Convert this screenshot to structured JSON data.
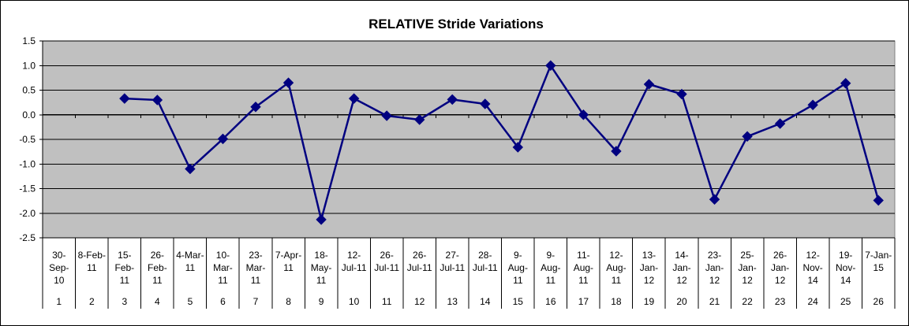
{
  "chart_data": {
    "type": "line",
    "title": "RELATIVE Stride Variations",
    "xlabel": "",
    "ylabel": "",
    "ylim": [
      -2.5,
      1.5
    ],
    "yticks": [
      "1.5",
      "1.0",
      "0.5",
      "0.0",
      "-0.5",
      "-1.0",
      "-1.5",
      "-2.0",
      "-2.5"
    ],
    "grid": true,
    "legend": "none",
    "colors": {
      "plot_bg": "#c0c0c0",
      "line": "#000080",
      "grid": "#000000"
    },
    "categories": [
      {
        "date": [
          "30-",
          "Sep-",
          "10"
        ],
        "n": "1"
      },
      {
        "date": [
          "8-Feb-",
          "11"
        ],
        "n": "2"
      },
      {
        "date": [
          "15-",
          "Feb-",
          "11"
        ],
        "n": "3"
      },
      {
        "date": [
          "26-",
          "Feb-",
          "11"
        ],
        "n": "4"
      },
      {
        "date": [
          "4-Mar-",
          "11"
        ],
        "n": "5"
      },
      {
        "date": [
          "10-",
          "Mar-",
          "11"
        ],
        "n": "6"
      },
      {
        "date": [
          "23-",
          "Mar-",
          "11"
        ],
        "n": "7"
      },
      {
        "date": [
          "7-Apr-",
          "11"
        ],
        "n": "8"
      },
      {
        "date": [
          "18-",
          "May-",
          "11"
        ],
        "n": "9"
      },
      {
        "date": [
          "12-",
          "Jul-11"
        ],
        "n": "10"
      },
      {
        "date": [
          "26-",
          "Jul-11"
        ],
        "n": "11"
      },
      {
        "date": [
          "26-",
          "Jul-11"
        ],
        "n": "12"
      },
      {
        "date": [
          "27-",
          "Jul-11"
        ],
        "n": "13"
      },
      {
        "date": [
          "28-",
          "Jul-11"
        ],
        "n": "14"
      },
      {
        "date": [
          "9-",
          "Aug-",
          "11"
        ],
        "n": "15"
      },
      {
        "date": [
          "9-",
          "Aug-",
          "11"
        ],
        "n": "16"
      },
      {
        "date": [
          "11-",
          "Aug-",
          "11"
        ],
        "n": "17"
      },
      {
        "date": [
          "12-",
          "Aug-",
          "11"
        ],
        "n": "18"
      },
      {
        "date": [
          "13-",
          "Jan-",
          "12"
        ],
        "n": "19"
      },
      {
        "date": [
          "14-",
          "Jan-",
          "12"
        ],
        "n": "20"
      },
      {
        "date": [
          "23-",
          "Jan-",
          "12"
        ],
        "n": "21"
      },
      {
        "date": [
          "25-",
          "Jan-",
          "12"
        ],
        "n": "22"
      },
      {
        "date": [
          "26-",
          "Jan-",
          "12"
        ],
        "n": "23"
      },
      {
        "date": [
          "12-",
          "Nov-",
          "14"
        ],
        "n": "24"
      },
      {
        "date": [
          "19-",
          "Nov-",
          "14"
        ],
        "n": "25"
      },
      {
        "date": [
          "7-Jan-",
          "15"
        ],
        "n": "26"
      }
    ],
    "series": [
      {
        "values": [
          null,
          null,
          0.33,
          0.3,
          -1.1,
          -0.49,
          0.16,
          0.65,
          -2.13,
          0.33,
          -0.02,
          -0.1,
          0.31,
          0.22,
          -0.66,
          1.0,
          0.0,
          -0.74,
          0.62,
          0.42,
          -1.72,
          -0.44,
          -0.18,
          0.2,
          0.64,
          -1.74
        ]
      }
    ]
  }
}
